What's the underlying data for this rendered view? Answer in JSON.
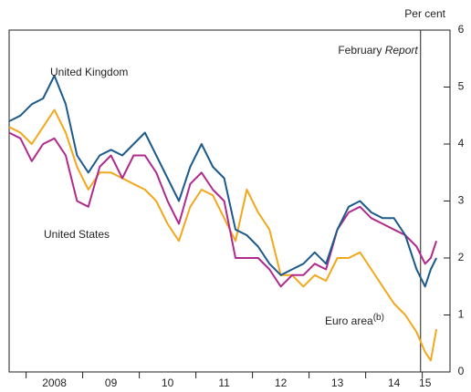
{
  "chart_data": {
    "type": "line",
    "y_unit_label": "Per cent",
    "x": [
      2007.7,
      2007.9,
      2008.1,
      2008.3,
      2008.5,
      2008.7,
      2008.9,
      2009.1,
      2009.3,
      2009.5,
      2009.7,
      2009.9,
      2010.1,
      2010.3,
      2010.5,
      2010.7,
      2010.9,
      2011.1,
      2011.3,
      2011.5,
      2011.7,
      2011.9,
      2012.1,
      2012.3,
      2012.5,
      2012.7,
      2012.9,
      2013.1,
      2013.3,
      2013.5,
      2013.7,
      2013.9,
      2014.1,
      2014.3,
      2014.5,
      2014.7,
      2014.9,
      2015.05,
      2015.15,
      2015.25
    ],
    "series": [
      {
        "name": "United Kingdom",
        "color": "#1d5a8c",
        "values": [
          4.4,
          4.5,
          4.7,
          4.8,
          5.2,
          4.7,
          3.8,
          3.5,
          3.8,
          3.9,
          3.8,
          4.0,
          4.2,
          3.8,
          3.4,
          3.0,
          3.6,
          4.0,
          3.6,
          3.4,
          2.5,
          2.4,
          2.2,
          1.9,
          1.7,
          1.8,
          1.9,
          2.1,
          1.9,
          2.5,
          2.9,
          3.0,
          2.8,
          2.7,
          2.7,
          2.4,
          1.8,
          1.5,
          1.8,
          2.0
        ]
      },
      {
        "name": "United States",
        "color": "#b02a8e",
        "values": [
          4.2,
          4.1,
          3.7,
          4.0,
          4.1,
          3.8,
          3.0,
          2.9,
          3.6,
          3.8,
          3.4,
          3.8,
          3.8,
          3.5,
          3.0,
          2.6,
          3.3,
          3.5,
          3.2,
          3.0,
          2.0,
          2.0,
          2.0,
          1.8,
          1.5,
          1.7,
          1.7,
          1.9,
          1.8,
          2.5,
          2.8,
          2.9,
          2.7,
          2.6,
          2.5,
          2.4,
          2.2,
          1.9,
          2.0,
          2.3
        ]
      },
      {
        "name": "Euro area",
        "name_superscript": "(b)",
        "color": "#f2a81d",
        "values": [
          4.3,
          4.2,
          4.0,
          4.3,
          4.6,
          4.2,
          3.6,
          3.2,
          3.5,
          3.5,
          3.4,
          3.3,
          3.2,
          3.0,
          2.6,
          2.3,
          2.9,
          3.2,
          3.1,
          2.7,
          2.3,
          3.2,
          2.8,
          2.5,
          1.7,
          1.7,
          1.5,
          1.7,
          1.6,
          2.0,
          2.0,
          2.1,
          1.8,
          1.5,
          1.2,
          1.0,
          0.7,
          0.35,
          0.2,
          0.75
        ]
      }
    ],
    "xlim": [
      2007.7,
      2015.49
    ],
    "xticks": [
      {
        "value": 2008.5,
        "label": "2008"
      },
      {
        "value": 2009.5,
        "label": "09"
      },
      {
        "value": 2010.5,
        "label": "10"
      },
      {
        "value": 2011.5,
        "label": "11"
      },
      {
        "value": 2012.5,
        "label": "12"
      },
      {
        "value": 2013.5,
        "label": "13"
      },
      {
        "value": 2014.5,
        "label": "14"
      },
      {
        "value": 2015.05,
        "label": "15"
      }
    ],
    "ylim": [
      0,
      6
    ],
    "yticks": [
      0,
      1,
      2,
      3,
      4,
      5,
      6
    ],
    "annotation": {
      "x": 2014.97,
      "text": "February",
      "emphasis": "Report"
    }
  }
}
